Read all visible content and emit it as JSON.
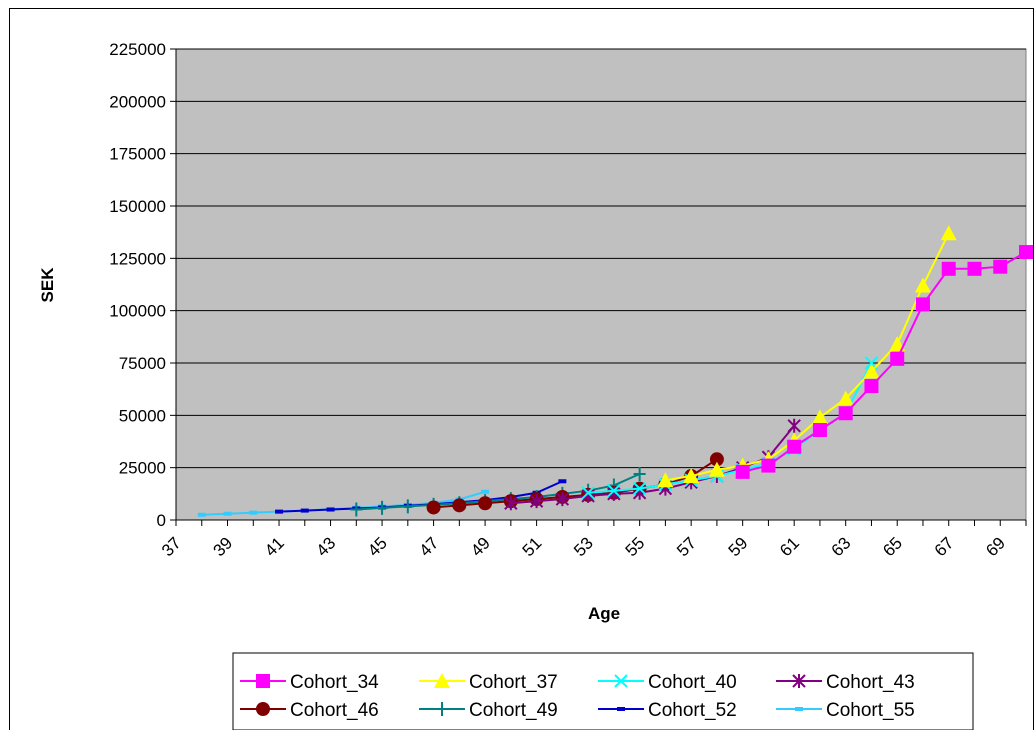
{
  "chart_data": {
    "type": "line",
    "title": "",
    "xlabel": "Age",
    "ylabel": "SEK",
    "xlim": [
      37,
      70
    ],
    "ylim": [
      0,
      225000
    ],
    "x_ticks": [
      37,
      39,
      41,
      43,
      45,
      47,
      49,
      51,
      53,
      55,
      57,
      59,
      61,
      63,
      65,
      67,
      69
    ],
    "y_ticks": [
      0,
      25000,
      50000,
      75000,
      100000,
      125000,
      150000,
      175000,
      200000,
      225000
    ],
    "grid": "horizontal",
    "plot_background": "#c0c0c0",
    "legend_position": "bottom",
    "series": [
      {
        "name": "Cohort_34",
        "color": "#ff00ff",
        "marker": "square",
        "x": [
          59,
          60,
          61,
          62,
          63,
          64,
          65,
          66,
          67,
          68,
          69,
          70
        ],
        "y": [
          23000,
          26000,
          35000,
          43000,
          51000,
          64000,
          77000,
          103000,
          120000,
          120000,
          121000,
          128000
        ]
      },
      {
        "name": "Cohort_37",
        "color": "#ffff00",
        "marker": "triangle",
        "x": [
          56,
          57,
          58,
          59,
          60,
          61,
          62,
          63,
          64,
          65,
          66,
          67
        ],
        "y": [
          19000,
          21000,
          24000,
          26000,
          29000,
          38000,
          49000,
          58000,
          71000,
          84000,
          112000,
          137000
        ]
      },
      {
        "name": "Cohort_40",
        "color": "#00ffff",
        "marker": "x",
        "x": [
          53,
          54,
          55,
          56,
          57,
          58,
          59,
          60,
          61,
          62,
          63,
          64
        ],
        "y": [
          13000,
          14000,
          15000,
          17000,
          19000,
          21000,
          24000,
          27000,
          34000,
          43000,
          51000,
          75000
        ]
      },
      {
        "name": "Cohort_43",
        "color": "#800080",
        "marker": "star",
        "x": [
          50,
          51,
          52,
          53,
          54,
          55,
          56,
          57,
          58,
          59,
          60,
          61
        ],
        "y": [
          8000,
          9000,
          10000,
          11500,
          12500,
          13000,
          15000,
          18000,
          21000,
          25000,
          30000,
          45000
        ]
      },
      {
        "name": "Cohort_46",
        "color": "#800000",
        "marker": "circle",
        "x": [
          47,
          48,
          49,
          50,
          51,
          52,
          53,
          54,
          55,
          56,
          57,
          58
        ],
        "y": [
          6000,
          7000,
          8000,
          9000,
          10000,
          11000,
          12000,
          13000,
          15000,
          17000,
          21000,
          29000
        ]
      },
      {
        "name": "Cohort_49",
        "color": "#008080",
        "marker": "plus",
        "x": [
          44,
          45,
          46,
          47,
          48,
          49,
          50,
          51,
          52,
          53,
          54,
          55
        ],
        "y": [
          5000,
          5800,
          6500,
          7200,
          8000,
          9000,
          10000,
          11000,
          12500,
          14000,
          16500,
          22000
        ]
      },
      {
        "name": "Cohort_52",
        "color": "#0000cc",
        "marker": "dash",
        "x": [
          41,
          42,
          43,
          44,
          45,
          46,
          47,
          48,
          49,
          50,
          51,
          52
        ],
        "y": [
          4000,
          4500,
          5000,
          5500,
          6000,
          6800,
          7500,
          8500,
          9500,
          11000,
          13000,
          18500
        ]
      },
      {
        "name": "Cohort_55",
        "color": "#33ccff",
        "marker": "dash",
        "x": [
          38,
          39,
          40,
          41,
          42,
          43,
          44,
          45,
          46,
          47,
          48,
          49
        ],
        "y": [
          2500,
          3000,
          3500,
          4000,
          4500,
          5200,
          5800,
          6500,
          7200,
          8200,
          9800,
          13500
        ]
      }
    ]
  }
}
